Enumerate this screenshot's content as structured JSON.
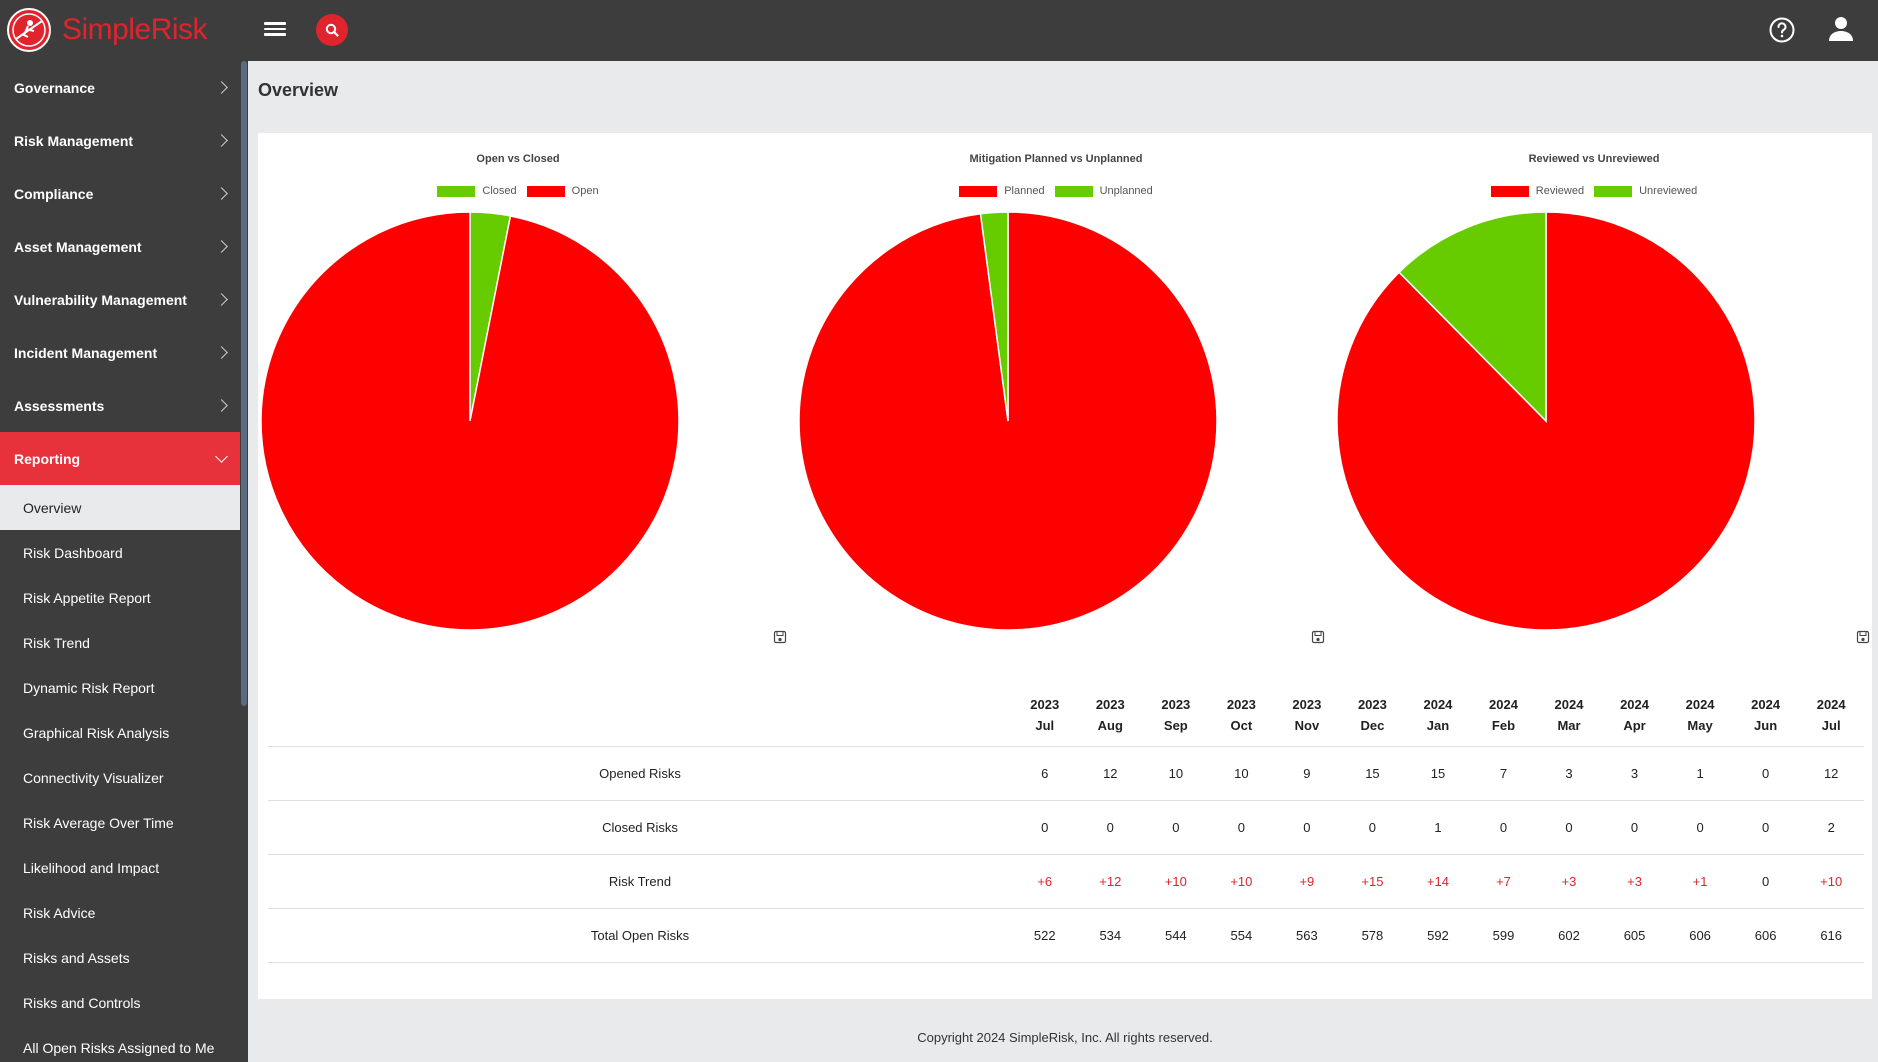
{
  "app": {
    "name": "SimpleRisk"
  },
  "topbar": {
    "menu_icon": "hamburger-icon",
    "search_icon": "search-icon",
    "help_icon": "help-circle-icon",
    "user_icon": "user-icon"
  },
  "sidebar": {
    "items": [
      {
        "label": "Governance"
      },
      {
        "label": "Risk Management"
      },
      {
        "label": "Compliance"
      },
      {
        "label": "Asset Management"
      },
      {
        "label": "Vulnerability Management"
      },
      {
        "label": "Incident Management"
      },
      {
        "label": "Assessments"
      },
      {
        "label": "Reporting",
        "active": true
      }
    ],
    "subitems": [
      {
        "label": "Overview",
        "selected": true
      },
      {
        "label": "Risk Dashboard"
      },
      {
        "label": "Risk Appetite Report"
      },
      {
        "label": "Risk Trend"
      },
      {
        "label": "Dynamic Risk Report"
      },
      {
        "label": "Graphical Risk Analysis"
      },
      {
        "label": "Connectivity Visualizer"
      },
      {
        "label": "Risk Average Over Time"
      },
      {
        "label": "Likelihood and Impact"
      },
      {
        "label": "Risk Advice"
      },
      {
        "label": "Risks and Assets"
      },
      {
        "label": "Risks and Controls"
      },
      {
        "label": "All Open Risks Assigned to Me"
      }
    ]
  },
  "page": {
    "title": "Overview"
  },
  "colors": {
    "red": "#ff0000",
    "green": "#66cc00",
    "accent": "#e7323c"
  },
  "chart_data": [
    {
      "type": "pie",
      "title": "Open vs Closed",
      "legend": [
        "Closed",
        "Open"
      ],
      "slices": [
        {
          "name": "Closed",
          "value": 3.1,
          "color": "#66cc00"
        },
        {
          "name": "Open",
          "value": 96.9,
          "color": "#ff0000"
        }
      ]
    },
    {
      "type": "pie",
      "title": "Mitigation Planned vs Unplanned",
      "legend": [
        "Planned",
        "Unplanned"
      ],
      "slices": [
        {
          "name": "Planned",
          "value": 97.9,
          "color": "#ff0000"
        },
        {
          "name": "Unplanned",
          "value": 2.1,
          "color": "#66cc00"
        }
      ]
    },
    {
      "type": "pie",
      "title": "Reviewed vs Unreviewed",
      "legend": [
        "Reviewed",
        "Unreviewed"
      ],
      "slices": [
        {
          "name": "Reviewed",
          "value": 87.6,
          "color": "#ff0000"
        },
        {
          "name": "Unreviewed",
          "value": 12.4,
          "color": "#66cc00"
        }
      ]
    }
  ],
  "trend_table": {
    "columns": [
      {
        "year": "2023",
        "month": "Jul"
      },
      {
        "year": "2023",
        "month": "Aug"
      },
      {
        "year": "2023",
        "month": "Sep"
      },
      {
        "year": "2023",
        "month": "Oct"
      },
      {
        "year": "2023",
        "month": "Nov"
      },
      {
        "year": "2023",
        "month": "Dec"
      },
      {
        "year": "2024",
        "month": "Jan"
      },
      {
        "year": "2024",
        "month": "Feb"
      },
      {
        "year": "2024",
        "month": "Mar"
      },
      {
        "year": "2024",
        "month": "Apr"
      },
      {
        "year": "2024",
        "month": "May"
      },
      {
        "year": "2024",
        "month": "Jun"
      },
      {
        "year": "2024",
        "month": "Jul"
      }
    ],
    "rows": [
      {
        "label": "Opened Risks",
        "values": [
          "6",
          "12",
          "10",
          "10",
          "9",
          "15",
          "15",
          "7",
          "3",
          "3",
          "1",
          "0",
          "12"
        ]
      },
      {
        "label": "Closed Risks",
        "values": [
          "0",
          "0",
          "0",
          "0",
          "0",
          "0",
          "1",
          "0",
          "0",
          "0",
          "0",
          "0",
          "2"
        ]
      },
      {
        "label": "Risk Trend",
        "values": [
          "+6",
          "+12",
          "+10",
          "+10",
          "+9",
          "+15",
          "+14",
          "+7",
          "+3",
          "+3",
          "+1",
          "0",
          "+10"
        ]
      },
      {
        "label": "Total Open Risks",
        "values": [
          "522",
          "534",
          "544",
          "554",
          "563",
          "578",
          "592",
          "599",
          "602",
          "605",
          "606",
          "606",
          "616"
        ]
      }
    ]
  },
  "footer": {
    "text": "Copyright 2024 SimpleRisk, Inc. All rights reserved."
  }
}
